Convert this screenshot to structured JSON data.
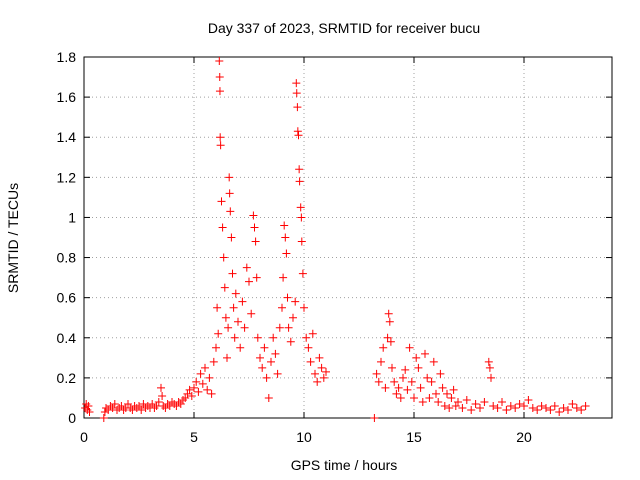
{
  "chart_data": {
    "type": "scatter",
    "title": "Day 337 of 2023, SRMTID for receiver bucu",
    "xlabel": "GPS time / hours",
    "ylabel": "SRMTID / TECUs",
    "xlim": [
      0,
      24
    ],
    "ylim": [
      0,
      1.8
    ],
    "xticks": [
      0,
      5,
      10,
      15,
      20
    ],
    "yticks": [
      0,
      0.2,
      0.4,
      0.6,
      0.8,
      1,
      1.2,
      1.4,
      1.6,
      1.8
    ],
    "xtick_labels": [
      "0",
      "5",
      "10",
      "15",
      "20"
    ],
    "ytick_labels": [
      "0",
      "0.2",
      "0.4",
      "0.6",
      "0.8",
      "1",
      "1.2",
      "1.4",
      "1.6",
      "1.8"
    ],
    "grid": true,
    "marker": "plus",
    "series": [
      {
        "name": "SRMTID",
        "color": "#ff0000",
        "points": [
          [
            0.05,
            0.05
          ],
          [
            0.1,
            0.07
          ],
          [
            0.15,
            0.04
          ],
          [
            0.2,
            0.06
          ],
          [
            0.25,
            0.03
          ],
          [
            0.9,
            0.0
          ],
          [
            0.95,
            0.03
          ],
          [
            1.0,
            0.05
          ],
          [
            1.1,
            0.04
          ],
          [
            1.2,
            0.06
          ],
          [
            1.3,
            0.05
          ],
          [
            1.4,
            0.07
          ],
          [
            1.5,
            0.04
          ],
          [
            1.6,
            0.05
          ],
          [
            1.7,
            0.06
          ],
          [
            1.8,
            0.04
          ],
          [
            1.9,
            0.05
          ],
          [
            2.0,
            0.07
          ],
          [
            2.1,
            0.05
          ],
          [
            2.2,
            0.04
          ],
          [
            2.3,
            0.06
          ],
          [
            2.4,
            0.05
          ],
          [
            2.5,
            0.06
          ],
          [
            2.6,
            0.04
          ],
          [
            2.7,
            0.07
          ],
          [
            2.8,
            0.05
          ],
          [
            2.9,
            0.06
          ],
          [
            3.0,
            0.05
          ],
          [
            3.1,
            0.07
          ],
          [
            3.2,
            0.05
          ],
          [
            3.3,
            0.06
          ],
          [
            3.4,
            0.08
          ],
          [
            3.5,
            0.15
          ],
          [
            3.55,
            0.11
          ],
          [
            3.6,
            0.06
          ],
          [
            3.7,
            0.05
          ],
          [
            3.8,
            0.07
          ],
          [
            3.9,
            0.06
          ],
          [
            4.0,
            0.08
          ],
          [
            4.1,
            0.07
          ],
          [
            4.2,
            0.06
          ],
          [
            4.3,
            0.08
          ],
          [
            4.4,
            0.07
          ],
          [
            4.5,
            0.09
          ],
          [
            4.6,
            0.1
          ],
          [
            4.7,
            0.12
          ],
          [
            4.8,
            0.14
          ],
          [
            4.9,
            0.11
          ],
          [
            5.0,
            0.15
          ],
          [
            5.1,
            0.18
          ],
          [
            5.2,
            0.13
          ],
          [
            5.3,
            0.22
          ],
          [
            5.4,
            0.17
          ],
          [
            5.5,
            0.25
          ],
          [
            5.6,
            0.14
          ],
          [
            5.7,
            0.2
          ],
          [
            5.8,
            0.12
          ],
          [
            5.9,
            0.28
          ],
          [
            6.0,
            0.35
          ],
          [
            6.05,
            0.55
          ],
          [
            6.1,
            0.42
          ],
          [
            6.15,
            1.78
          ],
          [
            6.17,
            1.7
          ],
          [
            6.18,
            1.63
          ],
          [
            6.19,
            1.4
          ],
          [
            6.21,
            1.36
          ],
          [
            6.25,
            1.08
          ],
          [
            6.3,
            0.95
          ],
          [
            6.35,
            0.8
          ],
          [
            6.4,
            0.65
          ],
          [
            6.45,
            0.5
          ],
          [
            6.5,
            0.3
          ],
          [
            6.55,
            0.45
          ],
          [
            6.6,
            1.2
          ],
          [
            6.62,
            1.12
          ],
          [
            6.65,
            1.03
          ],
          [
            6.7,
            0.9
          ],
          [
            6.75,
            0.72
          ],
          [
            6.8,
            0.55
          ],
          [
            6.85,
            0.4
          ],
          [
            6.9,
            0.62
          ],
          [
            7.0,
            0.48
          ],
          [
            7.1,
            0.35
          ],
          [
            7.2,
            0.58
          ],
          [
            7.3,
            0.45
          ],
          [
            7.4,
            0.75
          ],
          [
            7.5,
            0.68
          ],
          [
            7.6,
            0.52
          ],
          [
            7.7,
            1.01
          ],
          [
            7.75,
            0.95
          ],
          [
            7.8,
            0.88
          ],
          [
            7.85,
            0.7
          ],
          [
            7.9,
            0.4
          ],
          [
            8.0,
            0.3
          ],
          [
            8.1,
            0.25
          ],
          [
            8.2,
            0.35
          ],
          [
            8.3,
            0.2
          ],
          [
            8.4,
            0.1
          ],
          [
            8.5,
            0.28
          ],
          [
            8.6,
            0.4
          ],
          [
            8.7,
            0.32
          ],
          [
            8.8,
            0.22
          ],
          [
            8.9,
            0.45
          ],
          [
            9.0,
            0.55
          ],
          [
            9.05,
            0.7
          ],
          [
            9.1,
            0.96
          ],
          [
            9.15,
            0.9
          ],
          [
            9.2,
            0.82
          ],
          [
            9.25,
            0.6
          ],
          [
            9.3,
            0.45
          ],
          [
            9.4,
            0.38
          ],
          [
            9.5,
            0.5
          ],
          [
            9.6,
            0.58
          ],
          [
            9.65,
            1.67
          ],
          [
            9.67,
            1.62
          ],
          [
            9.7,
            1.55
          ],
          [
            9.72,
            1.43
          ],
          [
            9.75,
            1.41
          ],
          [
            9.78,
            1.24
          ],
          [
            9.8,
            1.18
          ],
          [
            9.85,
            1.05
          ],
          [
            9.88,
            1.0
          ],
          [
            9.9,
            0.88
          ],
          [
            9.95,
            0.72
          ],
          [
            10.0,
            0.55
          ],
          [
            10.1,
            0.4
          ],
          [
            10.2,
            0.35
          ],
          [
            10.3,
            0.28
          ],
          [
            10.4,
            0.42
          ],
          [
            10.5,
            0.22
          ],
          [
            10.6,
            0.18
          ],
          [
            10.7,
            0.3
          ],
          [
            10.8,
            0.25
          ],
          [
            10.9,
            0.2
          ],
          [
            11.0,
            0.23
          ],
          [
            13.2,
            0.0
          ],
          [
            13.3,
            0.22
          ],
          [
            13.4,
            0.18
          ],
          [
            13.5,
            0.28
          ],
          [
            13.6,
            0.35
          ],
          [
            13.7,
            0.15
          ],
          [
            13.8,
            0.4
          ],
          [
            13.85,
            0.52
          ],
          [
            13.9,
            0.48
          ],
          [
            13.95,
            0.38
          ],
          [
            14.0,
            0.25
          ],
          [
            14.1,
            0.18
          ],
          [
            14.2,
            0.12
          ],
          [
            14.3,
            0.15
          ],
          [
            14.4,
            0.1
          ],
          [
            14.5,
            0.2
          ],
          [
            14.6,
            0.24
          ],
          [
            14.7,
            0.14
          ],
          [
            14.8,
            0.35
          ],
          [
            14.9,
            0.18
          ],
          [
            15.0,
            0.1
          ],
          [
            15.1,
            0.3
          ],
          [
            15.2,
            0.25
          ],
          [
            15.3,
            0.15
          ],
          [
            15.4,
            0.08
          ],
          [
            15.5,
            0.32
          ],
          [
            15.6,
            0.2
          ],
          [
            15.7,
            0.1
          ],
          [
            15.8,
            0.18
          ],
          [
            15.9,
            0.28
          ],
          [
            16.0,
            0.12
          ],
          [
            16.1,
            0.08
          ],
          [
            16.2,
            0.22
          ],
          [
            16.3,
            0.15
          ],
          [
            16.4,
            0.06
          ],
          [
            16.5,
            0.12
          ],
          [
            16.6,
            0.05
          ],
          [
            16.7,
            0.1
          ],
          [
            16.8,
            0.14
          ],
          [
            16.9,
            0.06
          ],
          [
            17.0,
            0.08
          ],
          [
            17.2,
            0.05
          ],
          [
            17.4,
            0.09
          ],
          [
            17.6,
            0.04
          ],
          [
            17.8,
            0.07
          ],
          [
            18.0,
            0.05
          ],
          [
            18.2,
            0.08
          ],
          [
            18.4,
            0.28
          ],
          [
            18.45,
            0.25
          ],
          [
            18.5,
            0.2
          ],
          [
            18.6,
            0.06
          ],
          [
            18.8,
            0.05
          ],
          [
            19.0,
            0.08
          ],
          [
            19.2,
            0.04
          ],
          [
            19.4,
            0.06
          ],
          [
            19.6,
            0.05
          ],
          [
            19.8,
            0.07
          ],
          [
            20.0,
            0.06
          ],
          [
            20.2,
            0.09
          ],
          [
            20.4,
            0.05
          ],
          [
            20.6,
            0.04
          ],
          [
            20.8,
            0.06
          ],
          [
            21.0,
            0.05
          ],
          [
            21.2,
            0.04
          ],
          [
            21.4,
            0.06
          ],
          [
            21.6,
            0.03
          ],
          [
            21.8,
            0.05
          ],
          [
            22.0,
            0.04
          ],
          [
            22.2,
            0.07
          ],
          [
            22.4,
            0.05
          ],
          [
            22.6,
            0.04
          ],
          [
            22.8,
            0.06
          ]
        ]
      }
    ]
  }
}
